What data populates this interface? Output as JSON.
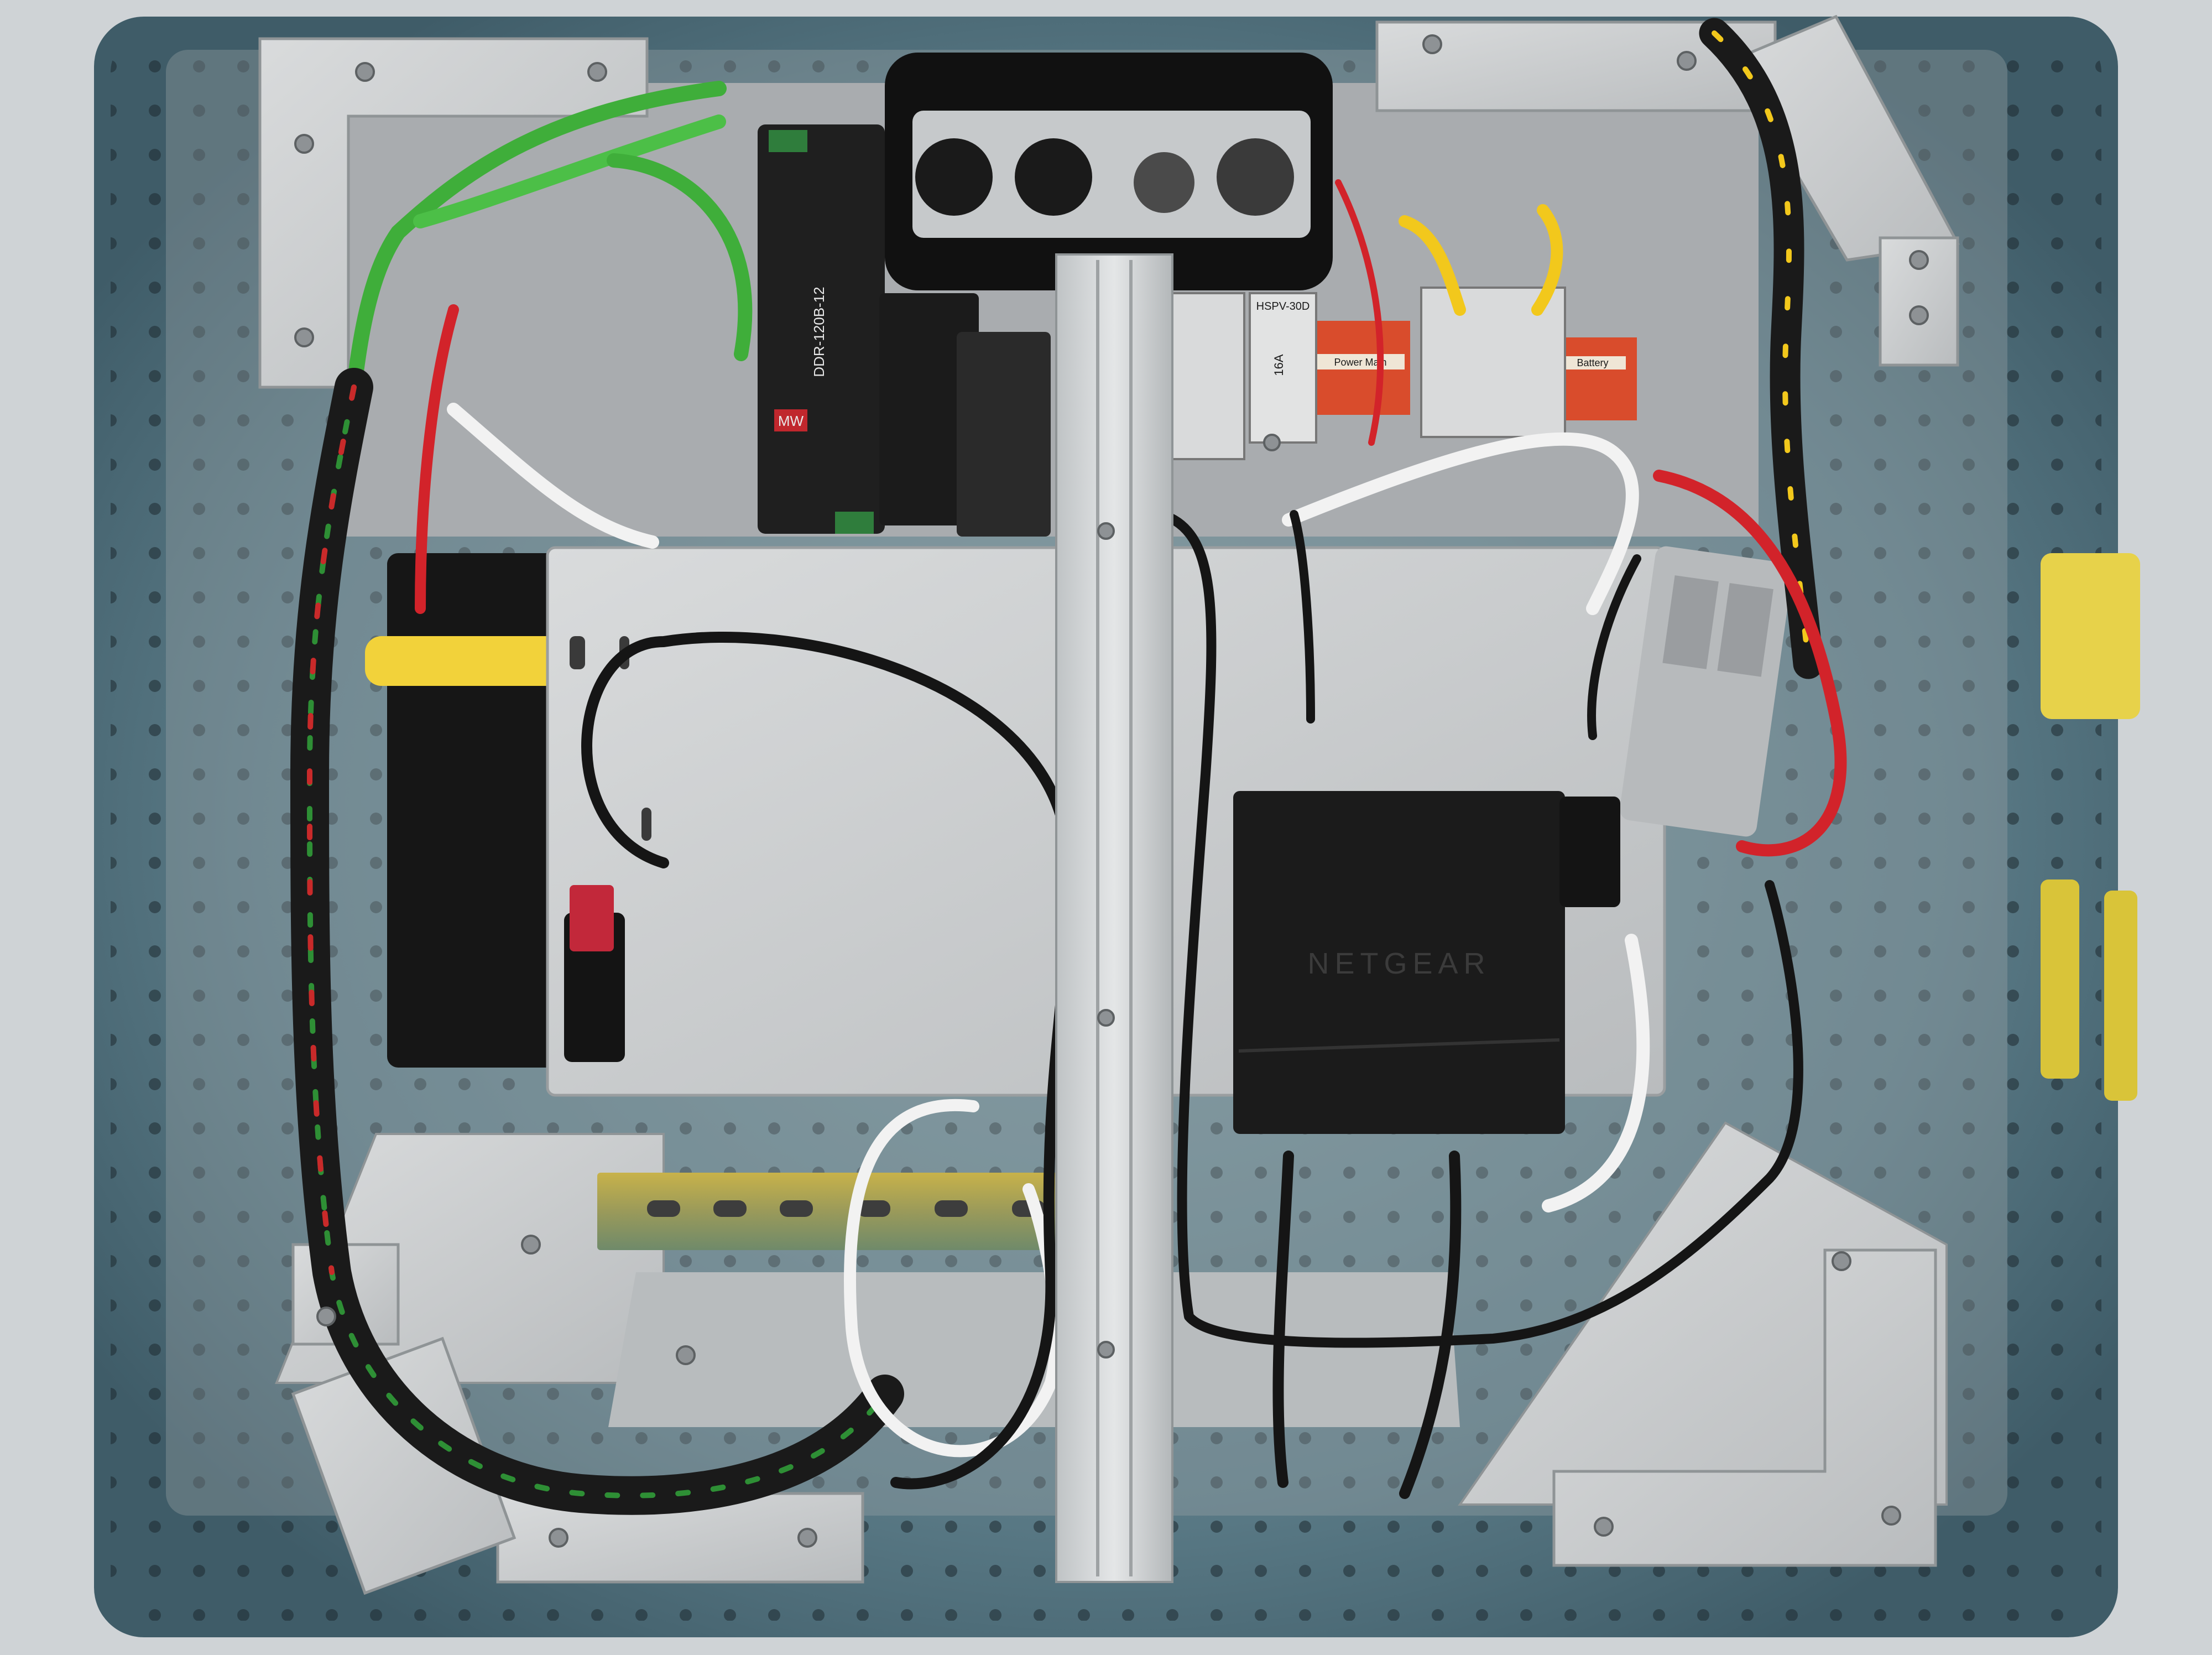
{
  "image": {
    "subject": "electrical-enclosure-interior"
  },
  "labels": {
    "psu_brand": "MW",
    "psu_model": "DDR-120B-12",
    "terminal_power_main": "Power Main",
    "terminal_battery": "Battery",
    "switch_brand": "NETGEAR",
    "relay_model": "HSPV-30D",
    "fuse_rating": "16A"
  },
  "colors": {
    "enclosure_blue": "#5f7f8c",
    "metal_plate": "#c9cccd",
    "wire_green": "#3fae3a",
    "wire_red": "#d2232a",
    "wire_yellow": "#f2c81c",
    "cable_black": "#151515",
    "cable_white": "#f2f2f2",
    "switch_black": "#1c1c1c"
  },
  "icons": {
    "mounting_holes": "dot-pattern",
    "screws": "hex-screw"
  }
}
